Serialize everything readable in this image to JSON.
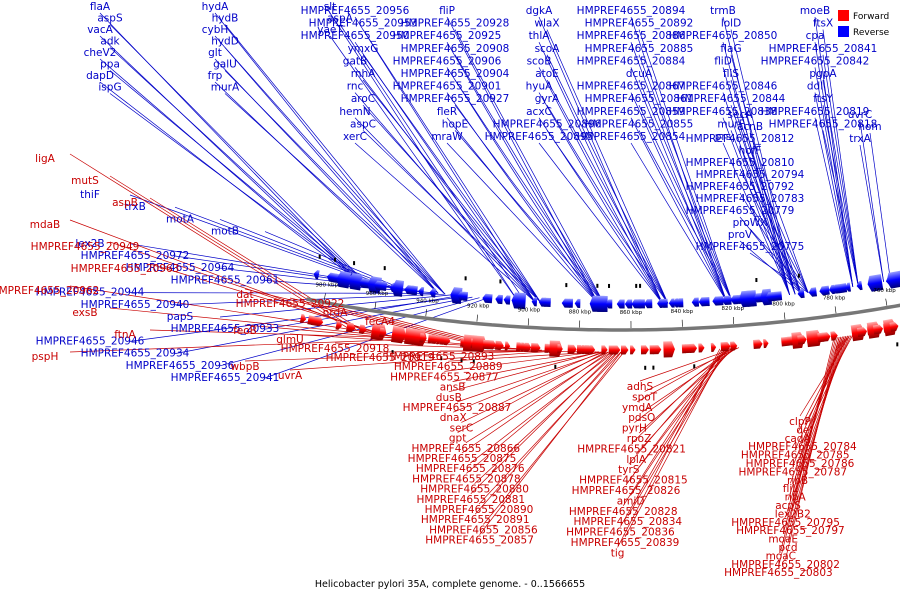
{
  "legend": [
    {
      "label": "Forward",
      "color": "#ff0000"
    },
    {
      "label": "Reverse",
      "color": "#0000ff"
    }
  ],
  "caption": "Helicobacter pylori 35A, complete genome. - 0..1566655",
  "scale_ticks": [
    "980 kbp",
    "960 kbp",
    "940 kbp",
    "920 kbp",
    "900 kbp",
    "880 kbp",
    "860 kbp",
    "840 kbp",
    "820 kbp",
    "800 kbp",
    "780 kbp",
    "760 kbp"
  ],
  "reverse_labels": [
    "flaA",
    "aspS",
    "vacA",
    "adk",
    "cheV2",
    "ppa",
    "dapD",
    "ispG",
    "hydA",
    "hydB",
    "cybH",
    "hydD",
    "glt",
    "galU",
    "frp",
    "murA",
    "slt",
    "aspA",
    "yaeT",
    "HMPREF4655_20956",
    "HMPREF4655_20953",
    "HMPREF4655_20950",
    "ymxG",
    "gatB",
    "rnhA",
    "rnc",
    "aroC",
    "hemN",
    "aspC",
    "xerC",
    "fliP",
    "HMPREF4655_20928",
    "HMPREF4655_20925",
    "HMPREF4655_20908",
    "HMPREF4655_20906",
    "HMPREF4655_20904",
    "HMPREF4655_20901",
    "HMPREF4655_20927",
    "fleR",
    "hopE",
    "mraW",
    "dgkA",
    "wlaX",
    "thlA",
    "scoA",
    "scoB",
    "atoE",
    "hyuA",
    "gyrA",
    "acxC",
    "HMPREF4655_20896",
    "HMPREF4655_20895",
    "HMPREF4655_20894",
    "HMPREF4655_20892",
    "HMPREF4655_20886",
    "HMPREF4655_20885",
    "HMPREF4655_20884",
    "dcuA",
    "HMPREF4655_20867",
    "HMPREF4655_20861",
    "HMPREF4655_20859",
    "HMPREF4655_20855",
    "HMPREF4655_20854",
    "trmB",
    "lolD",
    "HMPREF4655_20850",
    "flaG",
    "fliD",
    "fliS",
    "HMPREF4655_20846",
    "HMPREF4655_20844",
    "HMPREF4655_20838",
    "murF",
    "prs",
    "moeB",
    "ftsX",
    "cpa",
    "HMPREF4655_20841",
    "HMPREF4655_20842",
    "pgpA",
    "ddl",
    "ftsY",
    "HMPREF4655_20819",
    "HMPREF4655_20818",
    "secA",
    "acnB",
    "HMPREF4655_20812",
    "hofF",
    "HMPREF4655_20810",
    "HMPREF4655_20794",
    "HMPREF4655_20792",
    "HMPREF4655_20783",
    "HMPREF4655_20779",
    "proWX",
    "proV",
    "HMPREF4655_20775",
    "uvrC",
    "hom",
    "trxA",
    "thiF",
    "trxB",
    "motA",
    "motB",
    "lex2B",
    "HMPREF4655_20972",
    "HMPREF4655_20964",
    "HMPREF4655_20961",
    "HMPREF4655_20944",
    "HMPREF4655_20940",
    "papS",
    "HMPREF4655_20933",
    "HMPREF4655_20946",
    "HMPREF4655_20934",
    "HMPREF4655_20936",
    "HMPREF4655_20941"
  ],
  "forward_labels": [
    "ligA",
    "mutS",
    "aspB",
    "mdaB",
    "HMPREF4655_20949",
    "HMPREF4655_20963",
    "HMPREF4655_20962",
    "exsB",
    "ftnA",
    "pspH",
    "dat",
    "HMPREF4655_20922",
    "nrdA",
    "fecA4",
    "feoB",
    "glmU",
    "HMPREF4655_20918",
    "HMPREF4655_20919",
    "wbpB",
    "uvrA",
    "HMPREF4655_20893",
    "HMPREF4655_20889",
    "HMPREF4655_20877",
    "ansB",
    "dusB",
    "HMPREF4655_20887",
    "dnaX",
    "serC",
    "gpt",
    "HMPREF4655_20866",
    "HMPREF4655_20875",
    "HMPREF4655_20876",
    "HMPREF4655_20878",
    "HMPREF4655_20880",
    "HMPREF4655_20881",
    "HMPREF4655_20890",
    "HMPREF4655_20891",
    "HMPREF4655_20856",
    "HMPREF4655_20857",
    "adhS",
    "spoT",
    "ymdA",
    "pdsO",
    "pyrH",
    "rpoZ",
    "HMPREF4655_20821",
    "lplA",
    "tyrS",
    "HMPREF4655_20815",
    "HMPREF4655_20826",
    "amiD",
    "HMPREF4655_20828",
    "HMPREF4655_20834",
    "HMPREF4655_20836",
    "HMPREF4655_20839",
    "tig",
    "clpP",
    "def",
    "cadA",
    "HMPREF4655_20784",
    "HMPREF4655_20785",
    "HMPREF4655_20786",
    "HMPREF4655_20787",
    "ribB",
    "fliL",
    "ribA",
    "acpS",
    "lex2B2",
    "HMPREF4655_20795",
    "HMPREF4655_20797",
    "moaE",
    "pcd",
    "moaC",
    "HMPREF4655_20802",
    "HMPREF4655_20803"
  ]
}
